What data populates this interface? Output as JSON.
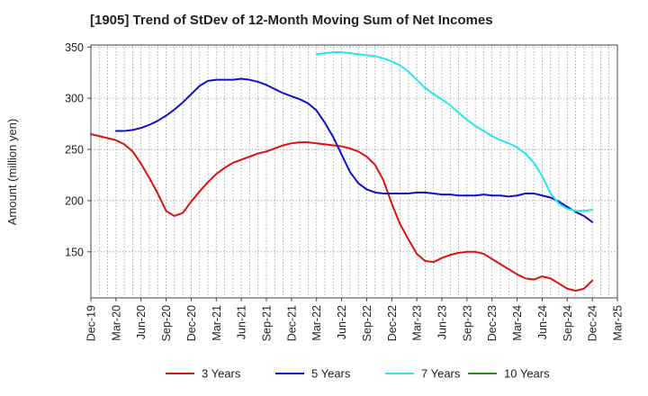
{
  "chart_data": {
    "type": "line",
    "title": "[1905]  Trend of StDev of 12-Month Moving Sum of Net Incomes",
    "ylabel": "Amount (million yen)",
    "xlabel": "",
    "ylim": [
      105,
      352
    ],
    "yticks": [
      150,
      200,
      250,
      300,
      350
    ],
    "xlim": [
      "2019-12",
      "2025-03"
    ],
    "xticks": [
      "Dec-19",
      "Mar-20",
      "Jun-20",
      "Sep-20",
      "Dec-20",
      "Mar-21",
      "Jun-21",
      "Sep-21",
      "Dec-21",
      "Mar-22",
      "Jun-22",
      "Sep-22",
      "Dec-22",
      "Mar-23",
      "Jun-23",
      "Sep-23",
      "Dec-23",
      "Mar-24",
      "Jun-24",
      "Sep-24",
      "Dec-24",
      "Mar-25"
    ],
    "grid": true,
    "legend_position": "bottom",
    "series": [
      {
        "name": "3 Years",
        "color": "#dd1111",
        "x": [
          "2019-12",
          "2020-01",
          "2020-02",
          "2020-03",
          "2020-04",
          "2020-05",
          "2020-06",
          "2020-07",
          "2020-08",
          "2020-09",
          "2020-10",
          "2020-11",
          "2020-12",
          "2021-01",
          "2021-02",
          "2021-03",
          "2021-04",
          "2021-05",
          "2021-06",
          "2021-07",
          "2021-08",
          "2021-09",
          "2021-10",
          "2021-11",
          "2021-12",
          "2022-01",
          "2022-02",
          "2022-03",
          "2022-04",
          "2022-05",
          "2022-06",
          "2022-07",
          "2022-08",
          "2022-09",
          "2022-10",
          "2022-11",
          "2022-12",
          "2023-01",
          "2023-02",
          "2023-03",
          "2023-04",
          "2023-05",
          "2023-06",
          "2023-07",
          "2023-08",
          "2023-09",
          "2023-10",
          "2023-11",
          "2023-12",
          "2024-01",
          "2024-02",
          "2024-03",
          "2024-04",
          "2024-05",
          "2024-06",
          "2024-07",
          "2024-08",
          "2024-09",
          "2024-10",
          "2024-11",
          "2024-12"
        ],
        "values": [
          265,
          263,
          261,
          259,
          255,
          248,
          236,
          222,
          207,
          190,
          185,
          188,
          199,
          209,
          218,
          226,
          232,
          237,
          240,
          243,
          246,
          248,
          251,
          254,
          256,
          257,
          257,
          256,
          255,
          254,
          253,
          251,
          248,
          243,
          235,
          220,
          197,
          177,
          162,
          148,
          141,
          140,
          144,
          147,
          149,
          150,
          150,
          148,
          143,
          138,
          133,
          128,
          124,
          123,
          126,
          124,
          119,
          114,
          112,
          114,
          122
        ]
      },
      {
        "name": "5 Years",
        "color": "#1010cc",
        "x": [
          "2020-03",
          "2020-04",
          "2020-05",
          "2020-06",
          "2020-07",
          "2020-08",
          "2020-09",
          "2020-10",
          "2020-11",
          "2020-12",
          "2021-01",
          "2021-02",
          "2021-03",
          "2021-04",
          "2021-05",
          "2021-06",
          "2021-07",
          "2021-08",
          "2021-09",
          "2021-10",
          "2021-11",
          "2021-12",
          "2022-01",
          "2022-02",
          "2022-03",
          "2022-04",
          "2022-05",
          "2022-06",
          "2022-07",
          "2022-08",
          "2022-09",
          "2022-10",
          "2022-11",
          "2022-12",
          "2023-01",
          "2023-02",
          "2023-03",
          "2023-04",
          "2023-05",
          "2023-06",
          "2023-07",
          "2023-08",
          "2023-09",
          "2023-10",
          "2023-11",
          "2023-12",
          "2024-01",
          "2024-02",
          "2024-03",
          "2024-04",
          "2024-05",
          "2024-06",
          "2024-07",
          "2024-08",
          "2024-09",
          "2024-10",
          "2024-11",
          "2024-12"
        ],
        "values": [
          268,
          268,
          269,
          271,
          274,
          278,
          283,
          289,
          296,
          304,
          312,
          317,
          318,
          318,
          318,
          319,
          318,
          316,
          313,
          309,
          305,
          302,
          299,
          295,
          288,
          276,
          262,
          245,
          228,
          217,
          211,
          208,
          207,
          207,
          207,
          207,
          208,
          208,
          207,
          206,
          206,
          205,
          205,
          205,
          206,
          205,
          205,
          204,
          205,
          207,
          207,
          205,
          203,
          199,
          194,
          189,
          185,
          179
        ]
      },
      {
        "name": "7 Years",
        "color": "#22e8e8",
        "x": [
          "2022-03",
          "2022-04",
          "2022-05",
          "2022-06",
          "2022-07",
          "2022-08",
          "2022-09",
          "2022-10",
          "2022-11",
          "2022-12",
          "2023-01",
          "2023-02",
          "2023-03",
          "2023-04",
          "2023-05",
          "2023-06",
          "2023-07",
          "2023-08",
          "2023-09",
          "2023-10",
          "2023-11",
          "2023-12",
          "2024-01",
          "2024-02",
          "2024-03",
          "2024-04",
          "2024-05",
          "2024-06",
          "2024-07",
          "2024-08",
          "2024-09",
          "2024-10",
          "2024-11",
          "2024-12"
        ],
        "values": [
          343,
          344,
          345,
          345,
          344,
          343,
          342,
          341,
          339,
          336,
          332,
          326,
          318,
          310,
          304,
          299,
          293,
          286,
          279,
          273,
          268,
          263,
          259,
          256,
          252,
          246,
          237,
          224,
          207,
          197,
          192,
          190,
          190,
          191
        ]
      },
      {
        "name": "10 Years",
        "color": "#1e8c1e",
        "x": [],
        "values": []
      }
    ]
  }
}
